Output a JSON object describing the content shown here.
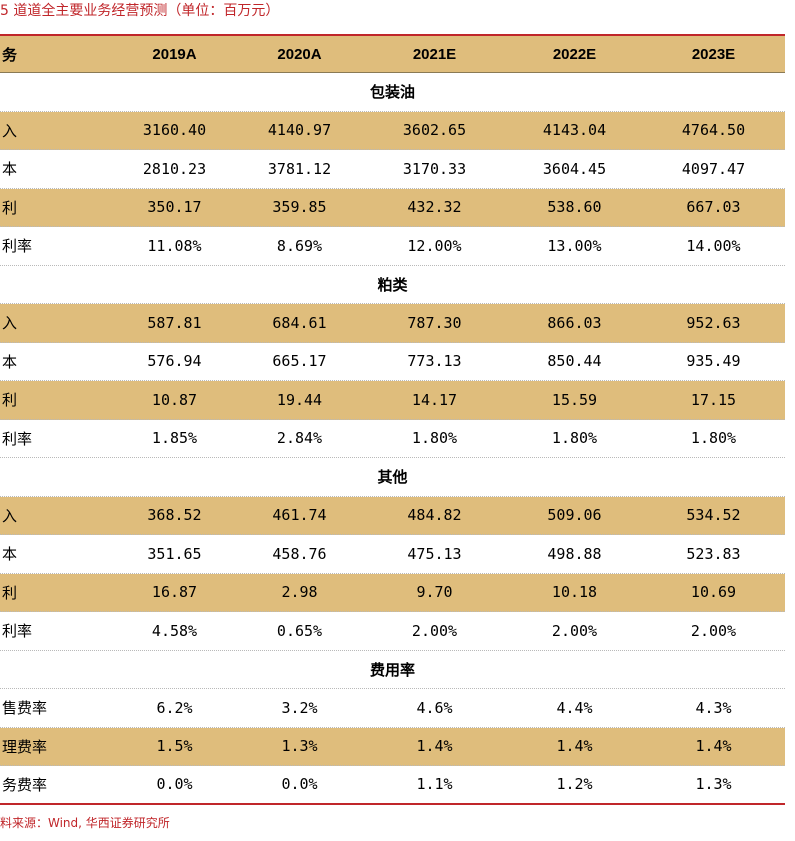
{
  "title": "5  道道全主要业务经营预测（单位：百万元）",
  "header": [
    "务",
    "2019A",
    "2020A",
    "2021E",
    "2022E",
    "2023E"
  ],
  "sections": [
    {
      "name": "包装油",
      "rows": [
        {
          "label": "入",
          "values": [
            "3160.40",
            "4140.97",
            "3602.65",
            "4143.04",
            "4764.50"
          ]
        },
        {
          "label": "本",
          "values": [
            "2810.23",
            "3781.12",
            "3170.33",
            "3604.45",
            "4097.47"
          ]
        },
        {
          "label": "利",
          "values": [
            "350.17",
            "359.85",
            "432.32",
            "538.60",
            "667.03"
          ]
        },
        {
          "label": "利率",
          "values": [
            "11.08%",
            "8.69%",
            "12.00%",
            "13.00%",
            "14.00%"
          ]
        }
      ]
    },
    {
      "name": "粕类",
      "rows": [
        {
          "label": "入",
          "values": [
            "587.81",
            "684.61",
            "787.30",
            "866.03",
            "952.63"
          ]
        },
        {
          "label": "本",
          "values": [
            "576.94",
            "665.17",
            "773.13",
            "850.44",
            "935.49"
          ]
        },
        {
          "label": "利",
          "values": [
            "10.87",
            "19.44",
            "14.17",
            "15.59",
            "17.15"
          ]
        },
        {
          "label": "利率",
          "values": [
            "1.85%",
            "2.84%",
            "1.80%",
            "1.80%",
            "1.80%"
          ]
        }
      ]
    },
    {
      "name": "其他",
      "rows": [
        {
          "label": "入",
          "values": [
            "368.52",
            "461.74",
            "484.82",
            "509.06",
            "534.52"
          ]
        },
        {
          "label": "本",
          "values": [
            "351.65",
            "458.76",
            "475.13",
            "498.88",
            "523.83"
          ]
        },
        {
          "label": "利",
          "values": [
            "16.87",
            "2.98",
            "9.70",
            "10.18",
            "10.69"
          ]
        },
        {
          "label": "利率",
          "values": [
            "4.58%",
            "0.65%",
            "2.00%",
            "2.00%",
            "2.00%"
          ]
        }
      ]
    },
    {
      "name": "费用率",
      "rows": [
        {
          "label": "售费率",
          "values": [
            "6.2%",
            "3.2%",
            "4.6%",
            "4.4%",
            "4.3%"
          ]
        },
        {
          "label": "理费率",
          "values": [
            "1.5%",
            "1.3%",
            "1.4%",
            "1.4%",
            "1.4%"
          ]
        },
        {
          "label": "务费率",
          "values": [
            "0.0%",
            "0.0%",
            "1.1%",
            "1.2%",
            "1.3%"
          ]
        }
      ]
    }
  ],
  "source": "料来源：Wind, 华西证券研究所",
  "colors": {
    "accent": "#c0262a",
    "band": "#dfbd7c"
  }
}
